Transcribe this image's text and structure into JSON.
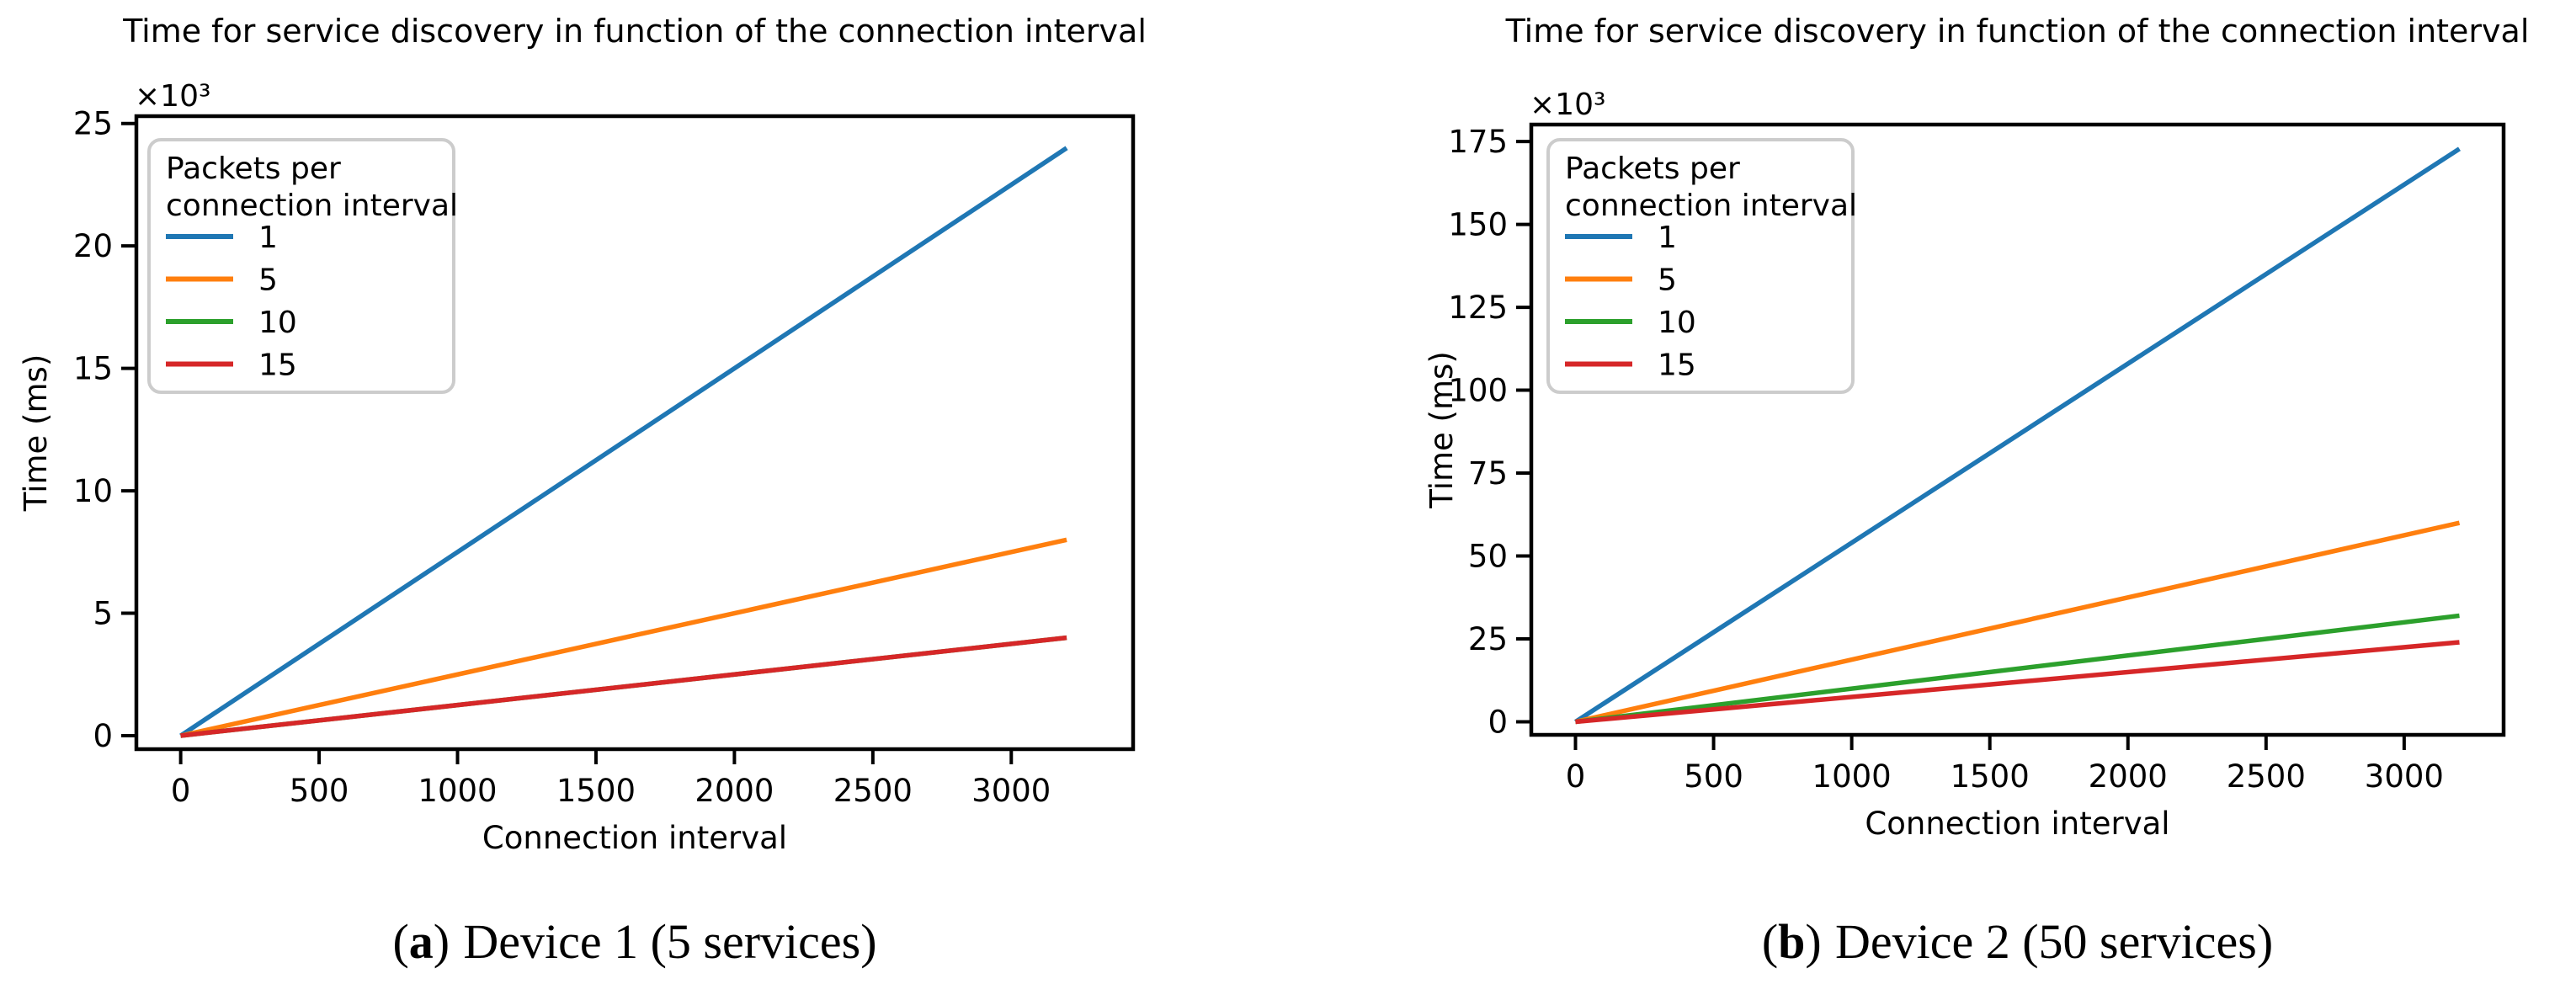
{
  "figure": {
    "description": "Two side-by-side line charts of BLE service discovery time versus connection interval",
    "background": "#ffffff",
    "text_color": "#000000"
  },
  "chart_data": [
    {
      "key": "a",
      "type": "line",
      "title": "Time for service discovery in function of the connection interval",
      "xlabel": "Connection interval",
      "ylabel": "Time (ms)",
      "y_multiplier": "×10³",
      "y_values_unit": "ms ×10³",
      "x_ticks": [
        0,
        500,
        1000,
        1500,
        2000,
        2500,
        3000
      ],
      "y_ticks": [
        0,
        5,
        10,
        15,
        20,
        25
      ],
      "x_max": 3200,
      "grid": false,
      "legend": {
        "position": "upper-left",
        "title_lines": [
          "Packets per",
          "connection interval"
        ],
        "entries": [
          {
            "label": "1",
            "color": "#1f77b4"
          },
          {
            "label": "5",
            "color": "#ff7f0e"
          },
          {
            "label": "10",
            "color": "#2ca02c"
          },
          {
            "label": "15",
            "color": "#d62728"
          }
        ]
      },
      "series": [
        {
          "name": "1",
          "color": "#1f77b4",
          "points": [
            [
              0,
              0
            ],
            [
              3200,
              24
            ]
          ]
        },
        {
          "name": "5",
          "color": "#ff7f0e",
          "points": [
            [
              0,
              0
            ],
            [
              3200,
              8
            ]
          ]
        },
        {
          "name": "10",
          "color": "#2ca02c",
          "points": [
            [
              0,
              0
            ],
            [
              3200,
              4
            ]
          ],
          "note": "identical to series 15, hidden beneath it"
        },
        {
          "name": "15",
          "color": "#d62728",
          "points": [
            [
              0,
              0
            ],
            [
              3200,
              4
            ]
          ]
        }
      ],
      "caption": {
        "prefix": "(",
        "letter": "a",
        "suffix": ")",
        "text": "Device 1 (5 services)"
      }
    },
    {
      "key": "b",
      "type": "line",
      "title": "Time for service discovery in function of the connection interval",
      "xlabel": "Connection interval",
      "ylabel": "Time (ms)",
      "y_multiplier": "×10³",
      "y_values_unit": "ms ×10³",
      "x_ticks": [
        0,
        500,
        1000,
        1500,
        2000,
        2500,
        3000
      ],
      "y_ticks": [
        0,
        25,
        50,
        75,
        100,
        125,
        150,
        175
      ],
      "x_max": 3200,
      "grid": false,
      "legend": {
        "position": "upper-left",
        "title_lines": [
          "Packets per",
          "connection interval"
        ],
        "entries": [
          {
            "label": "1",
            "color": "#1f77b4"
          },
          {
            "label": "5",
            "color": "#ff7f0e"
          },
          {
            "label": "10",
            "color": "#2ca02c"
          },
          {
            "label": "15",
            "color": "#d62728"
          }
        ]
      },
      "series": [
        {
          "name": "1",
          "color": "#1f77b4",
          "points": [
            [
              0,
              0
            ],
            [
              3200,
              172.8
            ]
          ]
        },
        {
          "name": "5",
          "color": "#ff7f0e",
          "points": [
            [
              0,
              0
            ],
            [
              3200,
              60
            ]
          ]
        },
        {
          "name": "10",
          "color": "#2ca02c",
          "points": [
            [
              0,
              0
            ],
            [
              3200,
              32
            ]
          ]
        },
        {
          "name": "15",
          "color": "#d62728",
          "points": [
            [
              0,
              0
            ],
            [
              3200,
              24
            ]
          ]
        }
      ],
      "caption": {
        "prefix": "(",
        "letter": "b",
        "suffix": ")",
        "text": "Device 2 (50 services)"
      }
    }
  ]
}
